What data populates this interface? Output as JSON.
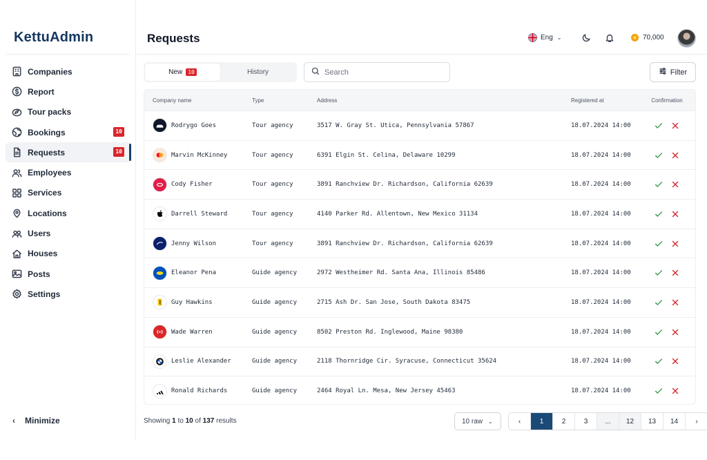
{
  "app": {
    "logo": "KettuAdmin"
  },
  "sidebar": {
    "items": [
      {
        "label": "Companies",
        "icon": "building-icon"
      },
      {
        "label": "Report",
        "icon": "dollar-circle-icon"
      },
      {
        "label": "Tour packs",
        "icon": "compass-icon"
      },
      {
        "label": "Bookings",
        "icon": "globe-icon",
        "badge": "10"
      },
      {
        "label": "Requests",
        "icon": "document-icon",
        "badge": "10",
        "active": true
      },
      {
        "label": "Employees",
        "icon": "users-icon"
      },
      {
        "label": "Services",
        "icon": "grid-icon"
      },
      {
        "label": "Locations",
        "icon": "location-pin-icon"
      },
      {
        "label": "Users",
        "icon": "user-group-icon"
      },
      {
        "label": "Houses",
        "icon": "house-icon"
      },
      {
        "label": "Posts",
        "icon": "image-icon"
      },
      {
        "label": "Settings",
        "icon": "gear-icon"
      }
    ],
    "minimize_label": "Minimize"
  },
  "header": {
    "title": "Requests",
    "language": "Eng",
    "coins": "70,000"
  },
  "toolbar": {
    "tabs": [
      {
        "label": "New",
        "badge": "10",
        "active": true
      },
      {
        "label": "History"
      }
    ],
    "search_placeholder": "Search",
    "filter_label": "Filter"
  },
  "table": {
    "columns": [
      "Company name",
      "Type",
      "Address",
      "Registered at",
      "Confirmation"
    ],
    "rows": [
      {
        "name": "Rodrygo Goes",
        "type": "Tour agency",
        "address": "3517 W. Gray St. Utica, Pennsylvania 57867",
        "date": "18.07.2024 14:00",
        "logo": "black-car-logo"
      },
      {
        "name": "Marvin McKinney",
        "type": "Tour agency",
        "address": "6391 Elgin St. Celina, Delaware 10299",
        "date": "18.07.2024 14:00",
        "logo": "mastercard-logo"
      },
      {
        "name": "Cody Fisher",
        "type": "Tour agency",
        "address": "3891 Ranchview Dr. Richardson, California 62639",
        "date": "18.07.2024 14:00",
        "logo": "red-brand-logo"
      },
      {
        "name": "Darrell Steward",
        "type": "Tour agency",
        "address": "4140 Parker Rd. Allentown, New Mexico 31134",
        "date": "18.07.2024 14:00",
        "logo": "apple-logo"
      },
      {
        "name": "Jenny Wilson",
        "type": "Tour agency",
        "address": "3891 Ranchview Dr. Richardson, California 62639",
        "date": "18.07.2024 14:00",
        "logo": "disney-logo"
      },
      {
        "name": "Eleanor Pena",
        "type": "Guide agency",
        "address": "2972 Westheimer Rd. Santa Ana, Illinois 85486",
        "date": "18.07.2024 14:00",
        "logo": "ikea-logo"
      },
      {
        "name": "Guy Hawkins",
        "type": "Guide agency",
        "address": "2715 Ash Dr. San Jose, South Dakota 83475",
        "date": "18.07.2024 14:00",
        "logo": "ferrari-logo"
      },
      {
        "name": "Wade Warren",
        "type": "Guide agency",
        "address": "8502 Preston Rd. Inglewood, Maine 98380",
        "date": "18.07.2024 14:00",
        "logo": "red-signal-logo"
      },
      {
        "name": "Leslie Alexander",
        "type": "Guide agency",
        "address": "2118 Thornridge Cir. Syracuse, Connecticut 35624",
        "date": "18.07.2024 14:00",
        "logo": "bmw-logo"
      },
      {
        "name": "Ronald Richards",
        "type": "Guide agency",
        "address": "2464 Royal Ln. Mesa, New Jersey 45463",
        "date": "18.07.2024 14:00",
        "logo": "adidas-logo"
      }
    ]
  },
  "footer": {
    "showing_prefix": "Showing",
    "range_start": "1",
    "to_word": "to",
    "range_end": "10",
    "of_word": "of",
    "total": "137",
    "results_word": "results",
    "rows_per_page": "10 raw",
    "pages": [
      "1",
      "2",
      "3",
      "...",
      "12",
      "13",
      "14"
    ],
    "current_page": "1"
  },
  "colors": {
    "brand": "#14365f",
    "badge": "#d9262c",
    "confirm": "#3a9a4a",
    "reject": "#d9262c",
    "page_active": "#1a4a75"
  }
}
